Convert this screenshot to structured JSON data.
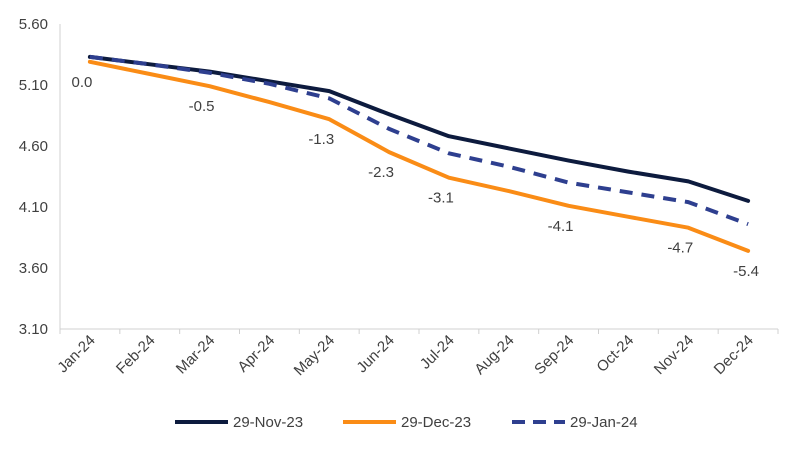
{
  "chart_data": {
    "type": "line",
    "title": "",
    "xlabel": "",
    "ylabel": "",
    "categories": [
      "Jan-24",
      "Feb-24",
      "Mar-24",
      "Apr-24",
      "May-24",
      "Jun-24",
      "Jul-24",
      "Aug-24",
      "Sep-24",
      "Oct-24",
      "Nov-24",
      "Dec-24"
    ],
    "y_ticks": [
      "3.10",
      "3.60",
      "4.10",
      "4.60",
      "5.10",
      "5.60"
    ],
    "ylim": [
      3.1,
      5.6
    ],
    "grid": false,
    "legend_position": "bottom",
    "series": [
      {
        "name": "29-Nov-23",
        "color": "#0d1b3e",
        "dash": "solid",
        "values": [
          5.33,
          5.27,
          5.21,
          5.13,
          5.05,
          4.86,
          4.68,
          4.58,
          4.48,
          4.39,
          4.31,
          4.15
        ]
      },
      {
        "name": "29-Dec-23",
        "color": "#fa8c16",
        "dash": "solid",
        "values": [
          5.29,
          5.19,
          5.09,
          4.96,
          4.82,
          4.55,
          4.34,
          4.23,
          4.11,
          4.02,
          3.93,
          3.74
        ]
      },
      {
        "name": "29-Jan-24",
        "color": "#2e3f8f",
        "dash": "dashed",
        "values": [
          5.33,
          5.27,
          5.2,
          5.11,
          4.99,
          4.74,
          4.54,
          4.43,
          4.3,
          4.22,
          4.14,
          3.96
        ]
      }
    ],
    "data_labels": [
      {
        "category": "Jan-24",
        "text": "0.0"
      },
      {
        "category": "Mar-24",
        "text": "-0.5"
      },
      {
        "category": "May-24",
        "text": "-1.3"
      },
      {
        "category": "Jun-24",
        "text": "-2.3"
      },
      {
        "category": "Jul-24",
        "text": "-3.1"
      },
      {
        "category": "Sep-24",
        "text": "-4.1"
      },
      {
        "category": "Nov-24",
        "text": "-4.7"
      },
      {
        "category": "Dec-24",
        "text": "-5.4"
      }
    ]
  }
}
